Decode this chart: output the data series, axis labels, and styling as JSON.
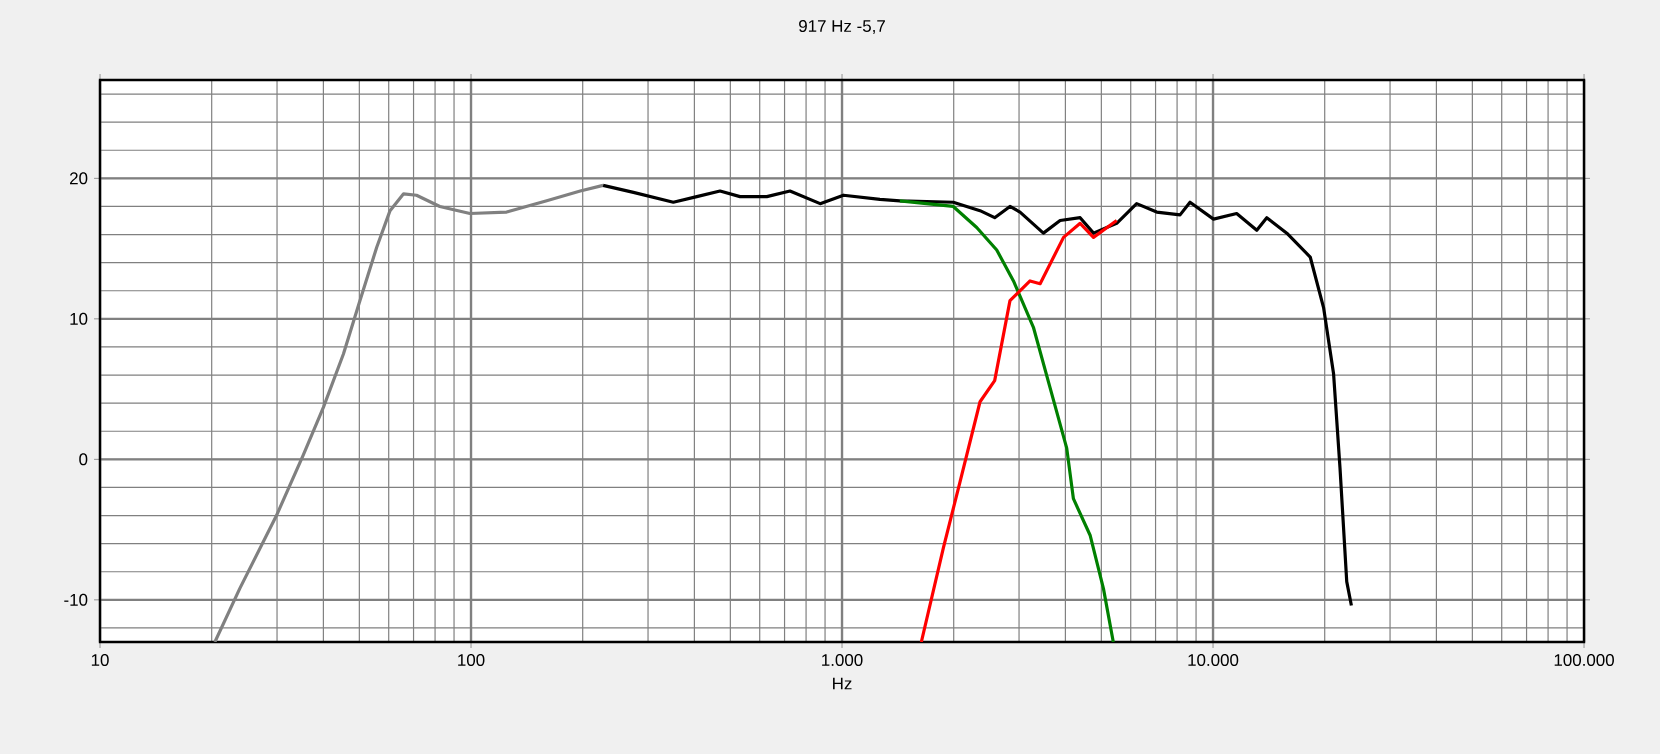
{
  "chart_data": {
    "type": "line",
    "title": "917 Hz   -5,7",
    "xlabel": "Hz",
    "log": "x",
    "xlim": [
      10,
      100000
    ],
    "ylim": [
      -13,
      27
    ],
    "xticks": [
      10,
      100,
      {
        "value": 1000,
        "label": "1.000"
      },
      {
        "value": 10000,
        "label": "10.000"
      },
      {
        "value": 100000,
        "label": "100.000"
      }
    ],
    "yticks": [
      -10,
      0,
      10,
      20
    ],
    "grid": true,
    "marker": "none",
    "line_style": "solid",
    "series": [
      {
        "color": "#808080",
        "x": [
          20.4,
          23.8,
          29.9,
          35.3,
          40.0,
          45.3,
          50.2,
          55.7,
          60.5,
          65.8,
          71.3,
          82.4,
          99.3,
          124.7,
          160,
          197,
          227
        ],
        "values": [
          -13.0,
          -9.2,
          -4.0,
          0.3,
          3.7,
          7.5,
          11.3,
          15.1,
          17.7,
          18.9,
          18.8,
          18.0,
          17.5,
          17.6,
          18.4,
          19.1,
          19.5
        ]
      },
      {
        "color": "#000000",
        "x": [
          227,
          274,
          351,
          406,
          469,
          531,
          627,
          724,
          873,
          1009,
          1265,
          1432,
          1995,
          2355,
          2579,
          2836,
          3019,
          3490,
          3871,
          4384,
          4762,
          5500,
          6225,
          7050,
          8150,
          8670,
          10030,
          11580,
          13120,
          13960,
          15810,
          18280,
          19860,
          21130,
          21990,
          22930,
          23600
        ],
        "values": [
          19.5,
          19.0,
          18.3,
          18.7,
          19.1,
          18.7,
          18.7,
          19.1,
          18.2,
          18.8,
          18.5,
          18.4,
          18.3,
          17.7,
          17.2,
          18.0,
          17.6,
          16.1,
          17.0,
          17.2,
          16.1,
          16.8,
          18.2,
          17.6,
          17.4,
          18.3,
          17.1,
          17.5,
          16.3,
          17.2,
          16.1,
          14.4,
          10.8,
          6.1,
          -0.6,
          -8.7,
          -10.4
        ]
      },
      {
        "color": "#008000",
        "x": [
          1432,
          1995,
          2307,
          2612,
          2898,
          3280,
          3637,
          4033,
          4204,
          4663,
          5066,
          5385
        ],
        "values": [
          18.4,
          18.0,
          16.5,
          14.9,
          12.7,
          9.4,
          5.1,
          0.8,
          -2.8,
          -5.4,
          -9.2,
          -13.0
        ]
      },
      {
        "color": "#ff0000",
        "x": [
          1636,
          1876,
          2080,
          2355,
          2579,
          2836,
          3212,
          3420,
          3955,
          4384,
          4762,
          5500
        ],
        "values": [
          -13.0,
          -6.3,
          -1.6,
          4.1,
          5.6,
          11.3,
          12.7,
          12.5,
          15.8,
          16.8,
          15.8,
          17.0
        ]
      }
    ]
  }
}
